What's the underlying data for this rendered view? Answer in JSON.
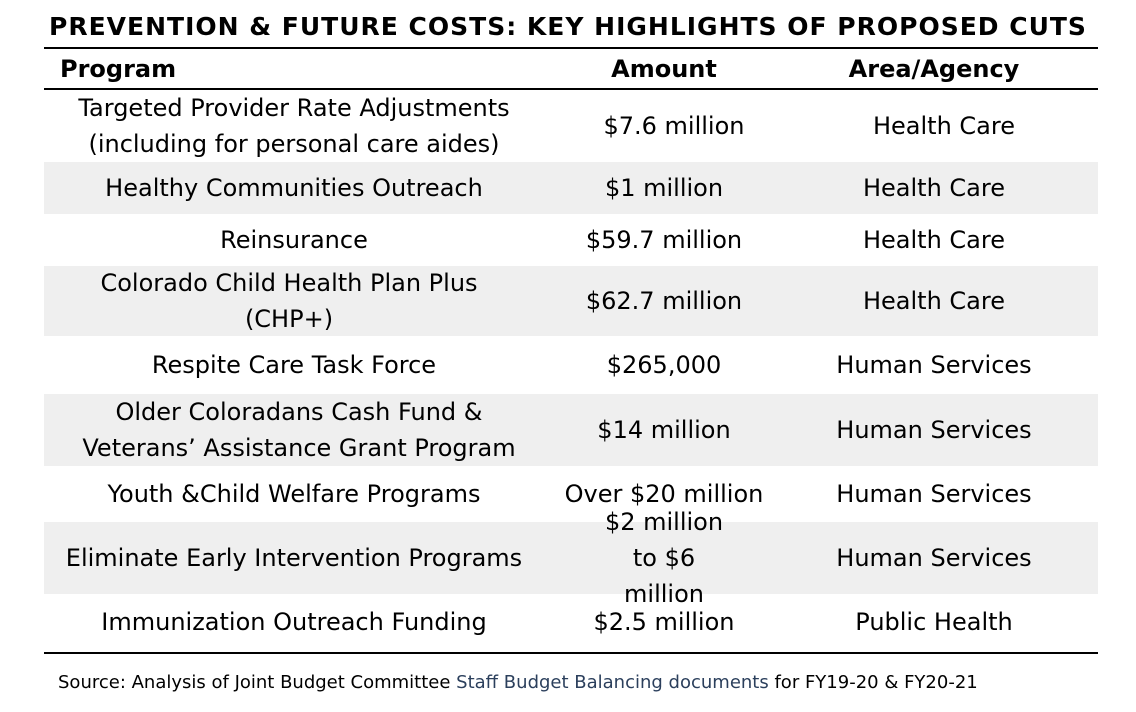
{
  "title": "PREVENTION & FUTURE COSTS: KEY HIGHLIGHTS OF PROPOSED CUTS",
  "columns": {
    "program": "Program",
    "amount": "Amount",
    "area": "Area/Agency"
  },
  "rows": [
    {
      "program": "Targeted Provider Rate Adjustments (including for personal care aides)",
      "amount": "$7.6 million",
      "area": "Health Care"
    },
    {
      "program": "Healthy Communities Outreach",
      "amount": "$1 million",
      "area": "Health Care"
    },
    {
      "program": "Reinsurance",
      "amount": "$59.7 million",
      "area": "Health Care"
    },
    {
      "program": "Colorado Child Health Plan Plus (CHP+)",
      "amount": "$62.7 million",
      "area": "Health Care"
    },
    {
      "program": "Respite Care Task Force",
      "amount": "$265,000",
      "area": "Human Services"
    },
    {
      "program": "Older Coloradans Cash Fund & Veterans’ Assistance Grant Program",
      "amount": "$14 million",
      "area": "Human Services"
    },
    {
      "program": "Youth &Child Welfare Programs",
      "amount": "Over $20 million",
      "area": "Human Services"
    },
    {
      "program": "Eliminate Early Intervention Programs",
      "amount": "$2 million to $6 million",
      "area": "Human Services"
    },
    {
      "program": "Immunization Outreach Funding",
      "amount": "$2.5 million",
      "area": "Public Health"
    }
  ],
  "source": {
    "prefix": "Source: Analysis of Joint Budget Committee ",
    "link": "Staff Budget Balancing documents",
    "suffix": " for FY19-20 & FY20-21"
  }
}
